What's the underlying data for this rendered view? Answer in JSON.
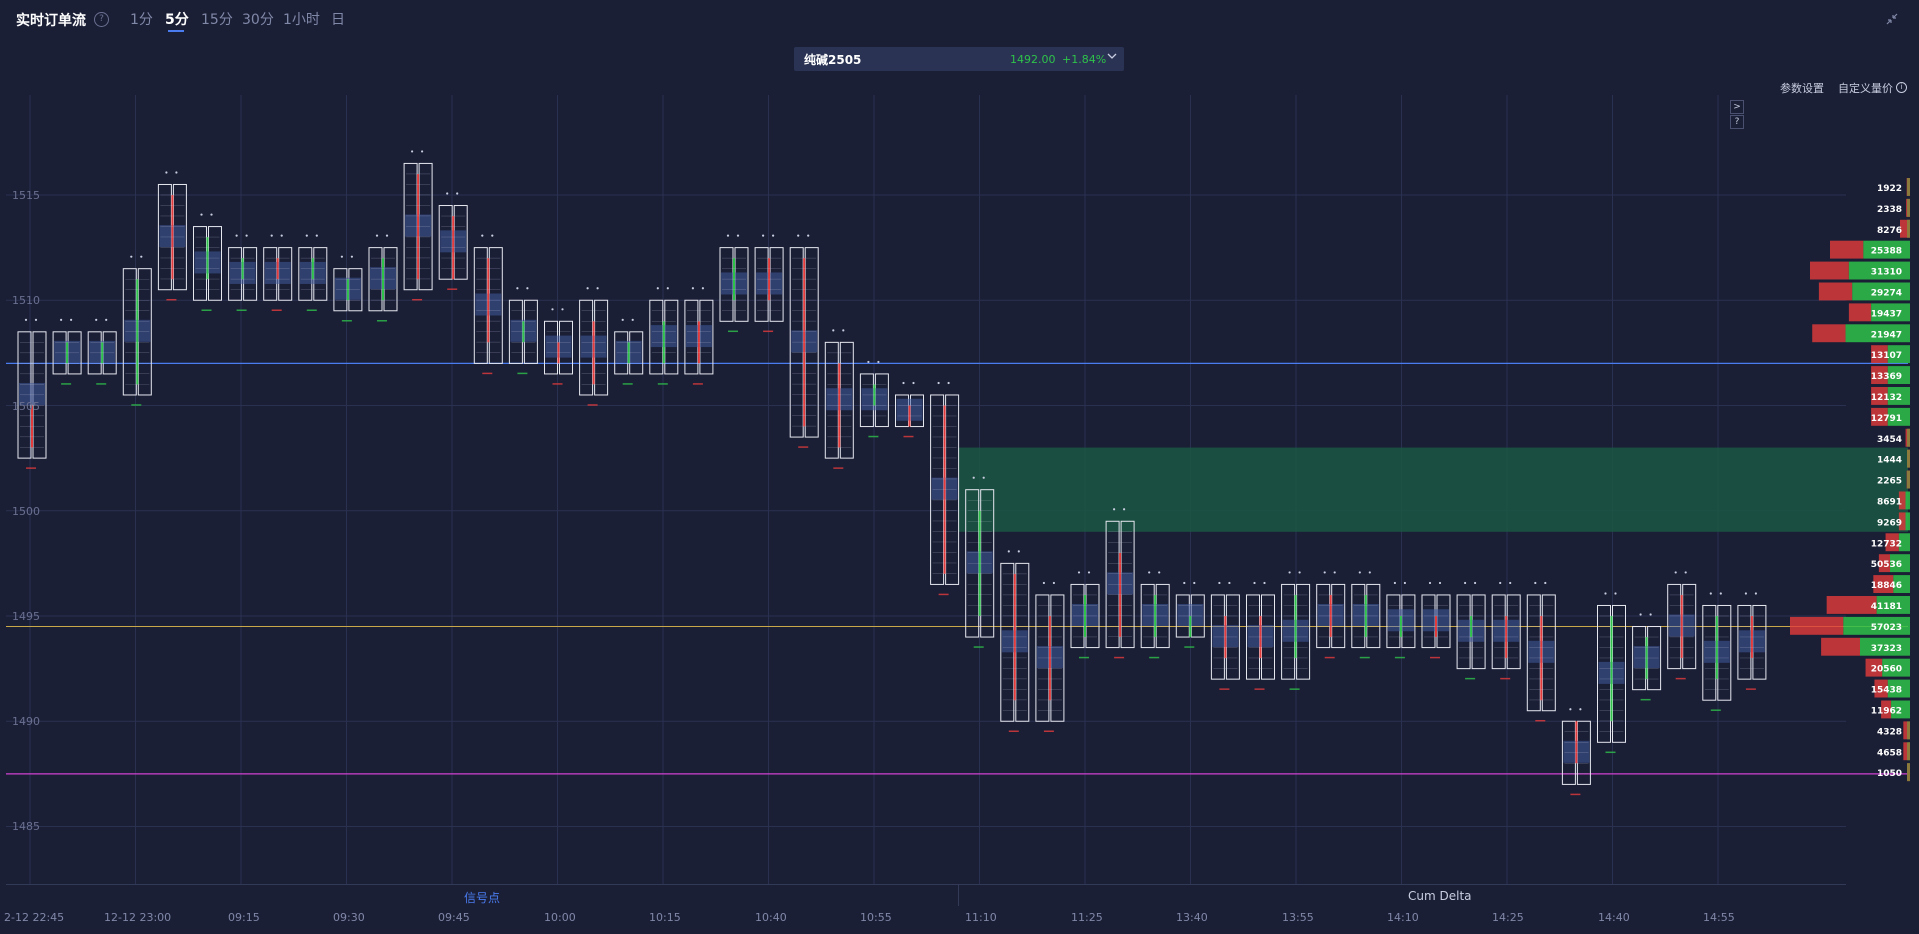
{
  "header": {
    "title": "实时订单流",
    "help_icon": "?",
    "tabs": [
      {
        "label": "1分",
        "active": false
      },
      {
        "label": "5分",
        "active": true
      },
      {
        "label": "15分",
        "active": false
      },
      {
        "label": "30分",
        "active": false
      },
      {
        "label": "1小时",
        "active": false
      },
      {
        "label": "日",
        "active": false
      }
    ],
    "collapse_icon": "collapse-icon"
  },
  "symbol": {
    "name": "纯碱2505",
    "price": "1492.00",
    "change": "+1.84%",
    "chevron": "chevron-down-icon"
  },
  "toolbar": {
    "params_label": "参数设置",
    "custom_volume_label": "自定义量价",
    "info_icon": "i"
  },
  "nav_buttons": [
    ">",
    "?"
  ],
  "bottom": {
    "left_label": "信号点",
    "right_label": "Cum Delta"
  },
  "colors": {
    "background": "#1b1f36",
    "grid": "#2a3050",
    "up": "#2ec24a",
    "down": "#e33b3b",
    "blue_line": "#4a7cf0",
    "yellow_line": "#c9a84a",
    "magenta_line": "#d040d0",
    "zone": "#1a5a44",
    "cell_highlight": "#3f5a9c"
  },
  "chart_data": {
    "type": "footprint",
    "y_ticks": [
      "1515",
      "1510",
      "1505",
      "1500",
      "1495",
      "1490",
      "1485"
    ],
    "x_ticks": [
      "2-12 22:45",
      "12-12 23:00",
      "09:15",
      "09:30",
      "09:45",
      "10:00",
      "10:15",
      "10:40",
      "10:55",
      "11:10",
      "11:25",
      "13:40",
      "13:55",
      "14:10",
      "14:25",
      "14:40",
      "14:55"
    ],
    "levels": {
      "blue": 1507,
      "yellow": 1494.5,
      "magenta": 1487.5
    },
    "zone": [
      1499.0,
      1503.0
    ],
    "candles": [
      {
        "low": 1502.5,
        "high": 1508.5,
        "open": 1505,
        "close": 1503,
        "dir": "down"
      },
      {
        "low": 1506.5,
        "high": 1508.5,
        "open": 1507,
        "close": 1508,
        "dir": "up"
      },
      {
        "low": 1506.5,
        "high": 1508.5,
        "open": 1507,
        "close": 1508,
        "dir": "up"
      },
      {
        "low": 1505.5,
        "high": 1511.5,
        "open": 1506,
        "close": 1511,
        "dir": "up"
      },
      {
        "low": 1510.5,
        "high": 1515.5,
        "open": 1511,
        "close": 1515,
        "dir": "down"
      },
      {
        "low": 1510.0,
        "high": 1513.5,
        "open": 1511,
        "close": 1513,
        "dir": "up"
      },
      {
        "low": 1510.0,
        "high": 1512.5,
        "open": 1511,
        "close": 1512,
        "dir": "up"
      },
      {
        "low": 1510.0,
        "high": 1512.5,
        "open": 1512,
        "close": 1511,
        "dir": "down"
      },
      {
        "low": 1510.0,
        "high": 1512.5,
        "open": 1511,
        "close": 1512,
        "dir": "up"
      },
      {
        "low": 1509.5,
        "high": 1511.5,
        "open": 1510,
        "close": 1511,
        "dir": "up"
      },
      {
        "low": 1509.5,
        "high": 1512.5,
        "open": 1510,
        "close": 1512,
        "dir": "up"
      },
      {
        "low": 1510.5,
        "high": 1516.5,
        "open": 1511,
        "close": 1516,
        "dir": "down"
      },
      {
        "low": 1511.0,
        "high": 1514.5,
        "open": 1514,
        "close": 1511,
        "dir": "down"
      },
      {
        "low": 1507.0,
        "high": 1512.5,
        "open": 1512,
        "close": 1508,
        "dir": "down"
      },
      {
        "low": 1507.0,
        "high": 1510.0,
        "open": 1509,
        "close": 1508,
        "dir": "up"
      },
      {
        "low": 1506.5,
        "high": 1509.0,
        "open": 1508,
        "close": 1507,
        "dir": "down"
      },
      {
        "low": 1505.5,
        "high": 1510.0,
        "open": 1509,
        "close": 1506,
        "dir": "down"
      },
      {
        "low": 1506.5,
        "high": 1508.5,
        "open": 1507,
        "close": 1508,
        "dir": "up"
      },
      {
        "low": 1506.5,
        "high": 1510.0,
        "open": 1507,
        "close": 1509,
        "dir": "up"
      },
      {
        "low": 1506.5,
        "high": 1510.0,
        "open": 1509,
        "close": 1507,
        "dir": "down"
      },
      {
        "low": 1509.0,
        "high": 1512.5,
        "open": 1510,
        "close": 1512,
        "dir": "up"
      },
      {
        "low": 1509.0,
        "high": 1512.5,
        "open": 1512,
        "close": 1510,
        "dir": "down"
      },
      {
        "low": 1503.5,
        "high": 1512.5,
        "open": 1512,
        "close": 1504,
        "dir": "down"
      },
      {
        "low": 1502.5,
        "high": 1508.0,
        "open": 1507,
        "close": 1503,
        "dir": "down"
      },
      {
        "low": 1504.0,
        "high": 1506.5,
        "open": 1505,
        "close": 1506,
        "dir": "up"
      },
      {
        "low": 1504.0,
        "high": 1505.5,
        "open": 1505,
        "close": 1504,
        "dir": "down"
      },
      {
        "low": 1496.5,
        "high": 1505.5,
        "open": 1505,
        "close": 1497,
        "dir": "down"
      },
      {
        "low": 1494.0,
        "high": 1501.0,
        "open": 1495,
        "close": 1500,
        "dir": "up"
      },
      {
        "low": 1490.0,
        "high": 1497.5,
        "open": 1497,
        "close": 1491,
        "dir": "down"
      },
      {
        "low": 1490.0,
        "high": 1496.0,
        "open": 1495,
        "close": 1491,
        "dir": "down"
      },
      {
        "low": 1493.5,
        "high": 1496.5,
        "open": 1494,
        "close": 1496,
        "dir": "up"
      },
      {
        "low": 1493.5,
        "high": 1499.5,
        "open": 1498,
        "close": 1494,
        "dir": "down"
      },
      {
        "low": 1493.5,
        "high": 1496.5,
        "open": 1494,
        "close": 1496,
        "dir": "up"
      },
      {
        "low": 1494.0,
        "high": 1496.0,
        "open": 1494,
        "close": 1495,
        "dir": "up"
      },
      {
        "low": 1492.0,
        "high": 1496.0,
        "open": 1495,
        "close": 1493,
        "dir": "down"
      },
      {
        "low": 1492.0,
        "high": 1496.0,
        "open": 1495,
        "close": 1493,
        "dir": "down"
      },
      {
        "low": 1492.0,
        "high": 1496.5,
        "open": 1493,
        "close": 1496,
        "dir": "up"
      },
      {
        "low": 1493.5,
        "high": 1496.5,
        "open": 1496,
        "close": 1494,
        "dir": "down"
      },
      {
        "low": 1493.5,
        "high": 1496.5,
        "open": 1494,
        "close": 1496,
        "dir": "up"
      },
      {
        "low": 1493.5,
        "high": 1496.0,
        "open": 1494,
        "close": 1495,
        "dir": "up"
      },
      {
        "low": 1493.5,
        "high": 1496.0,
        "open": 1495,
        "close": 1494,
        "dir": "down"
      },
      {
        "low": 1492.5,
        "high": 1496.0,
        "open": 1494,
        "close": 1495,
        "dir": "up"
      },
      {
        "low": 1492.5,
        "high": 1496.0,
        "open": 1495,
        "close": 1493,
        "dir": "down"
      },
      {
        "low": 1490.5,
        "high": 1496.0,
        "open": 1495,
        "close": 1491,
        "dir": "down"
      },
      {
        "low": 1487.0,
        "high": 1490.0,
        "open": 1490,
        "close": 1488,
        "dir": "down"
      },
      {
        "low": 1489.0,
        "high": 1495.5,
        "open": 1490,
        "close": 1495,
        "dir": "up"
      },
      {
        "low": 1491.5,
        "high": 1494.5,
        "open": 1492,
        "close": 1494,
        "dir": "up"
      },
      {
        "low": 1492.5,
        "high": 1496.5,
        "open": 1496,
        "close": 1493,
        "dir": "down"
      },
      {
        "low": 1491.0,
        "high": 1495.5,
        "open": 1492,
        "close": 1495,
        "dir": "up"
      },
      {
        "low": 1492.0,
        "high": 1495.5,
        "open": 1495,
        "close": 1493,
        "dir": "down"
      }
    ],
    "volume_profile": [
      {
        "label": "1922",
        "up": 300,
        "down": 0
      },
      {
        "label": "2338",
        "up": 350,
        "down": 0
      },
      {
        "label": "8276",
        "up": 900,
        "down": 0
      },
      {
        "label": "25388",
        "up": 3000,
        "down": 4200
      },
      {
        "label": "31310",
        "up": 3500,
        "down": 5500
      },
      {
        "label": "29274",
        "up": 3000,
        "down": 5200
      },
      {
        "label": "19437",
        "up": 2000,
        "down": 3500
      },
      {
        "label": "21947",
        "up": 3000,
        "down": 5800
      },
      {
        "label": "13107",
        "up": 1500,
        "down": 2000
      },
      {
        "label": "13369",
        "up": 1500,
        "down": 2000
      },
      {
        "label": "12132",
        "up": 1500,
        "down": 2000
      },
      {
        "label": "12791",
        "up": 1500,
        "down": 2000
      },
      {
        "label": "3454",
        "up": 400,
        "down": 0
      },
      {
        "label": "1444",
        "up": 200,
        "down": 0
      },
      {
        "label": "2265",
        "up": 300,
        "down": 0
      },
      {
        "label": "8691",
        "up": 600,
        "down": 400
      },
      {
        "label": "9269",
        "up": 600,
        "down": 400
      },
      {
        "label": "12732",
        "up": 1200,
        "down": 1000
      },
      {
        "label": "50536",
        "up": 1000,
        "down": 1800
      },
      {
        "label": "18846",
        "up": 1800,
        "down": 1500
      },
      {
        "label": "41181",
        "up": 4500,
        "down": 3000
      },
      {
        "label": "57023",
        "up": 4800,
        "down": 6000
      },
      {
        "label": "37323",
        "up": 3500,
        "down": 4500
      },
      {
        "label": "20560",
        "up": 1500,
        "down": 2500
      },
      {
        "label": "15438",
        "up": 1200,
        "down": 2000
      },
      {
        "label": "11962",
        "up": 900,
        "down": 1700
      },
      {
        "label": "4328",
        "up": 400,
        "down": 200
      },
      {
        "label": "4658",
        "up": 400,
        "down": 200
      },
      {
        "label": "1050",
        "up": 150,
        "down": 100
      }
    ]
  }
}
